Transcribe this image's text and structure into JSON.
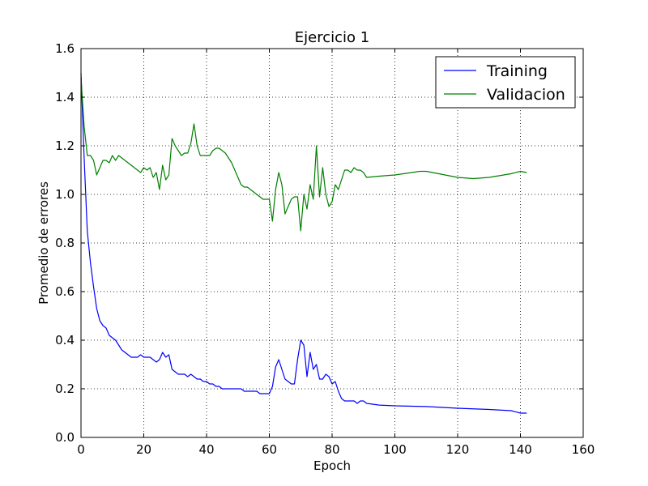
{
  "chart_data": {
    "type": "line",
    "title": "Ejercicio 1",
    "xlabel": "Epoch",
    "ylabel": "Promedio de errores",
    "xlim": [
      0,
      160
    ],
    "ylim": [
      0.0,
      1.6
    ],
    "xticks": [
      0,
      20,
      40,
      60,
      80,
      100,
      120,
      140,
      160
    ],
    "xtick_labels": [
      "0",
      "20",
      "40",
      "60",
      "80",
      "100",
      "120",
      "140",
      "160"
    ],
    "yticks": [
      0.0,
      0.2,
      0.4,
      0.6,
      0.8,
      1.0,
      1.2,
      1.4,
      1.6
    ],
    "ytick_labels": [
      "0.0",
      "0.2",
      "0.4",
      "0.6",
      "0.8",
      "1.0",
      "1.2",
      "1.4",
      "1.6"
    ],
    "grid": true,
    "legend_position": "top-right",
    "series": [
      {
        "name": "Training",
        "color": "#0000ff",
        "x": [
          0,
          1,
          2,
          3,
          4,
          5,
          6,
          7,
          8,
          9,
          10,
          11,
          12,
          13,
          14,
          15,
          16,
          17,
          18,
          19,
          20,
          21,
          22,
          23,
          24,
          25,
          26,
          27,
          28,
          29,
          30,
          31,
          32,
          33,
          34,
          35,
          36,
          37,
          38,
          39,
          40,
          41,
          42,
          43,
          44,
          45,
          46,
          47,
          48,
          49,
          50,
          51,
          52,
          53,
          54,
          55,
          56,
          57,
          58,
          59,
          60,
          61,
          62,
          63,
          64,
          65,
          66,
          67,
          68,
          69,
          70,
          71,
          72,
          73,
          74,
          75,
          76,
          77,
          78,
          79,
          80,
          81,
          82,
          83,
          84,
          85,
          86,
          87,
          88,
          89,
          90,
          91,
          95,
          100,
          110,
          120,
          130,
          137,
          140,
          142
        ],
        "y": [
          1.5,
          1.15,
          0.85,
          0.72,
          0.62,
          0.53,
          0.48,
          0.46,
          0.45,
          0.42,
          0.41,
          0.4,
          0.38,
          0.36,
          0.35,
          0.34,
          0.33,
          0.33,
          0.33,
          0.34,
          0.33,
          0.33,
          0.33,
          0.32,
          0.31,
          0.32,
          0.35,
          0.33,
          0.34,
          0.28,
          0.27,
          0.26,
          0.26,
          0.26,
          0.25,
          0.26,
          0.25,
          0.24,
          0.24,
          0.23,
          0.23,
          0.22,
          0.22,
          0.21,
          0.21,
          0.2,
          0.2,
          0.2,
          0.2,
          0.2,
          0.2,
          0.2,
          0.19,
          0.19,
          0.19,
          0.19,
          0.19,
          0.18,
          0.18,
          0.18,
          0.18,
          0.21,
          0.29,
          0.32,
          0.28,
          0.24,
          0.23,
          0.22,
          0.22,
          0.32,
          0.4,
          0.38,
          0.25,
          0.35,
          0.28,
          0.3,
          0.24,
          0.24,
          0.26,
          0.25,
          0.22,
          0.23,
          0.19,
          0.16,
          0.15,
          0.15,
          0.15,
          0.15,
          0.14,
          0.15,
          0.15,
          0.14,
          0.133,
          0.13,
          0.127,
          0.12,
          0.115,
          0.11,
          0.1,
          0.1
        ]
      },
      {
        "name": "Validacion",
        "color": "#008000",
        "x": [
          0,
          1,
          2,
          3,
          4,
          5,
          6,
          7,
          8,
          9,
          10,
          11,
          12,
          13,
          14,
          15,
          16,
          17,
          18,
          19,
          20,
          21,
          22,
          23,
          24,
          25,
          26,
          27,
          28,
          29,
          30,
          31,
          32,
          33,
          34,
          35,
          36,
          37,
          38,
          39,
          40,
          41,
          42,
          43,
          44,
          45,
          46,
          47,
          48,
          49,
          50,
          51,
          52,
          53,
          54,
          55,
          56,
          57,
          58,
          59,
          60,
          61,
          62,
          63,
          64,
          65,
          66,
          67,
          68,
          69,
          70,
          71,
          72,
          73,
          74,
          75,
          76,
          77,
          78,
          79,
          80,
          81,
          82,
          83,
          84,
          85,
          86,
          87,
          88,
          89,
          90,
          91,
          95,
          100,
          108,
          110,
          120,
          125,
          130,
          137,
          140,
          142
        ],
        "y": [
          1.48,
          1.28,
          1.16,
          1.16,
          1.14,
          1.08,
          1.11,
          1.14,
          1.14,
          1.13,
          1.16,
          1.14,
          1.16,
          1.15,
          1.14,
          1.13,
          1.12,
          1.11,
          1.1,
          1.09,
          1.11,
          1.1,
          1.11,
          1.07,
          1.09,
          1.02,
          1.12,
          1.06,
          1.08,
          1.23,
          1.2,
          1.18,
          1.16,
          1.17,
          1.17,
          1.21,
          1.29,
          1.2,
          1.16,
          1.16,
          1.16,
          1.16,
          1.18,
          1.19,
          1.19,
          1.18,
          1.17,
          1.15,
          1.13,
          1.1,
          1.07,
          1.04,
          1.03,
          1.03,
          1.02,
          1.01,
          1.0,
          0.99,
          0.98,
          0.98,
          0.98,
          0.89,
          1.02,
          1.09,
          1.04,
          0.92,
          0.95,
          0.98,
          0.99,
          0.99,
          0.85,
          1.0,
          0.94,
          1.04,
          0.98,
          1.2,
          0.99,
          1.11,
          1.0,
          0.95,
          0.97,
          1.04,
          1.02,
          1.06,
          1.1,
          1.1,
          1.09,
          1.11,
          1.1,
          1.1,
          1.09,
          1.07,
          1.075,
          1.08,
          1.095,
          1.095,
          1.07,
          1.065,
          1.07,
          1.085,
          1.095,
          1.09
        ]
      }
    ]
  }
}
